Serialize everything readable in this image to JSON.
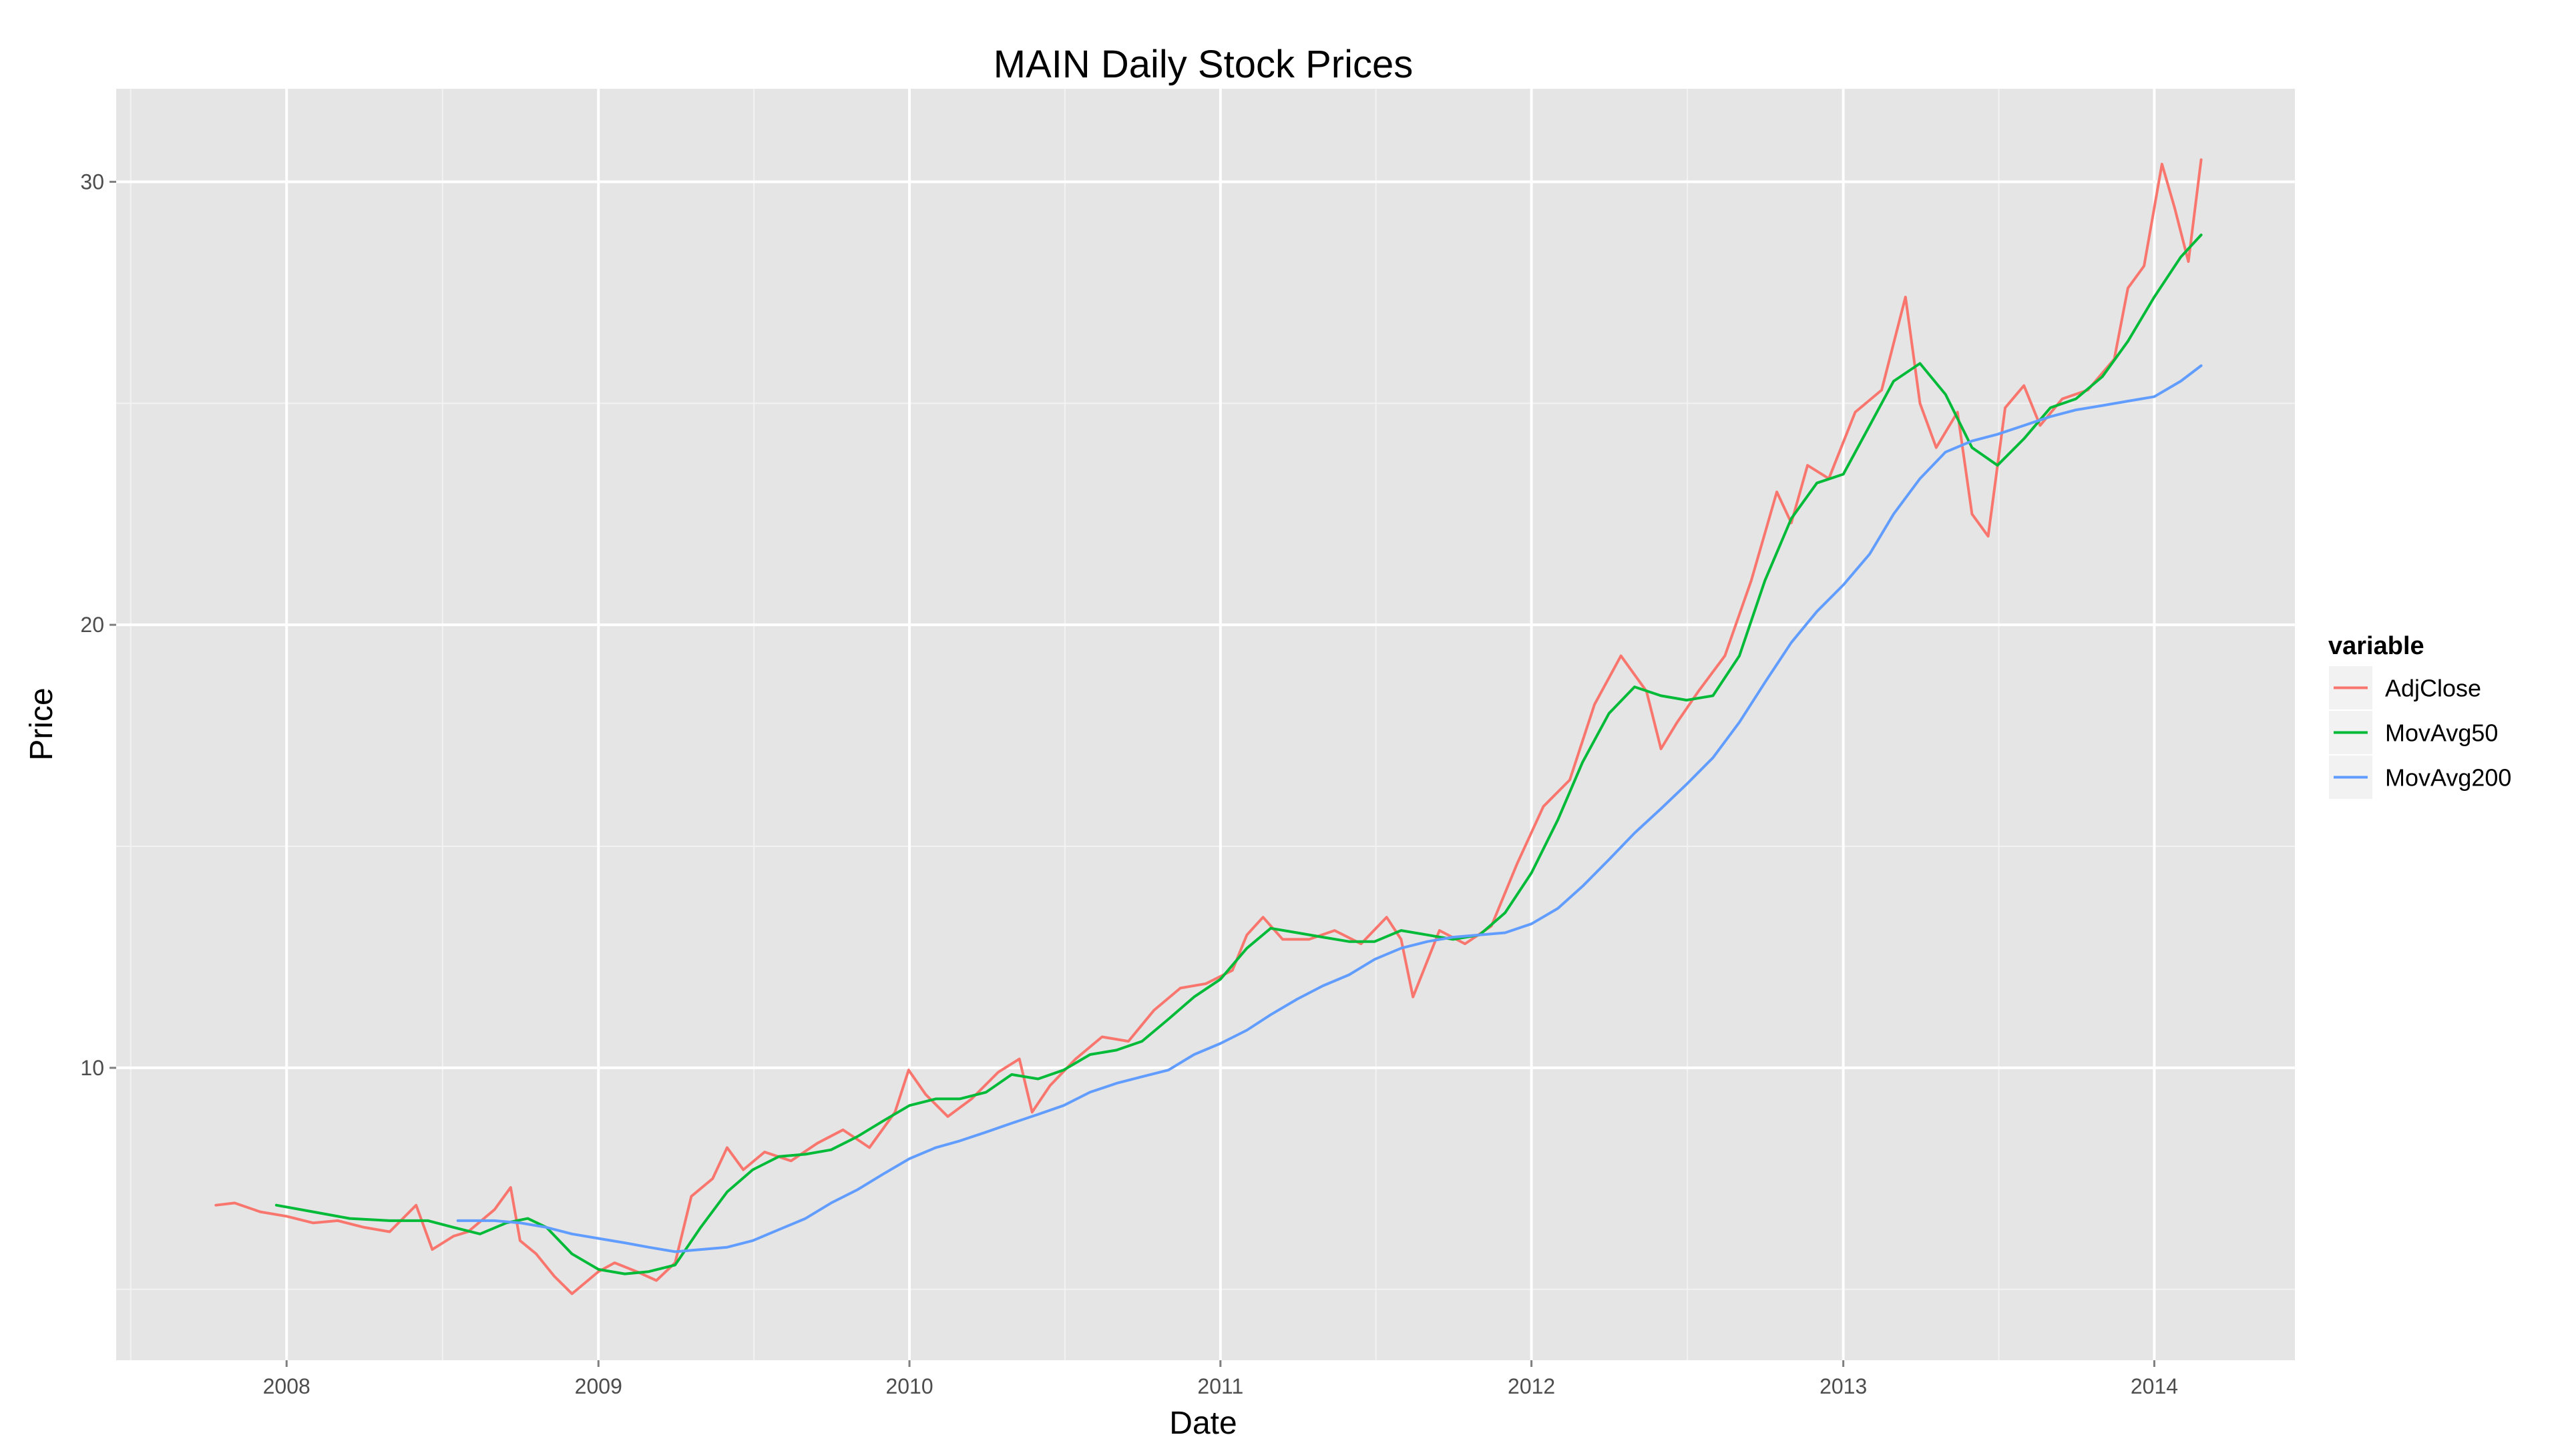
{
  "chart_data": {
    "type": "line",
    "title": "MAIN Daily Stock Prices",
    "xlabel": "Date",
    "ylabel": "Price",
    "x_type": "date",
    "xlim": [
      "2007-06-15",
      "2014-06-15"
    ],
    "ylim": [
      3.4,
      32.1
    ],
    "x_ticks": [
      {
        "value": "2008-01-01",
        "label": "2008"
      },
      {
        "value": "2009-01-01",
        "label": "2009"
      },
      {
        "value": "2010-01-01",
        "label": "2010"
      },
      {
        "value": "2011-01-01",
        "label": "2011"
      },
      {
        "value": "2012-01-01",
        "label": "2012"
      },
      {
        "value": "2013-01-01",
        "label": "2013"
      },
      {
        "value": "2014-01-01",
        "label": "2014"
      }
    ],
    "y_ticks": [
      {
        "value": 10,
        "label": "10"
      },
      {
        "value": 20,
        "label": "20"
      },
      {
        "value": 30,
        "label": "30"
      }
    ],
    "grid": true,
    "background": "#e5e5e5",
    "grid_color": "#ffffff",
    "legend": {
      "title": "variable",
      "position": "right"
    },
    "series": [
      {
        "name": "AdjClose",
        "color": "#f8766d",
        "points": [
          [
            "2007-10-10",
            6.9
          ],
          [
            "2007-11-01",
            6.95
          ],
          [
            "2007-12-01",
            6.75
          ],
          [
            "2008-01-01",
            6.65
          ],
          [
            "2008-02-01",
            6.5
          ],
          [
            "2008-03-01",
            6.55
          ],
          [
            "2008-04-01",
            6.4
          ],
          [
            "2008-05-01",
            6.3
          ],
          [
            "2008-06-01",
            6.9
          ],
          [
            "2008-06-20",
            5.9
          ],
          [
            "2008-07-15",
            6.2
          ],
          [
            "2008-08-01",
            6.3
          ],
          [
            "2008-09-01",
            6.8
          ],
          [
            "2008-09-20",
            7.3
          ],
          [
            "2008-10-01",
            6.1
          ],
          [
            "2008-10-20",
            5.8
          ],
          [
            "2008-11-10",
            5.3
          ],
          [
            "2008-12-01",
            4.9
          ],
          [
            "2009-01-01",
            5.4
          ],
          [
            "2009-01-20",
            5.6
          ],
          [
            "2009-02-15",
            5.4
          ],
          [
            "2009-03-10",
            5.2
          ],
          [
            "2009-04-01",
            5.6
          ],
          [
            "2009-04-20",
            7.1
          ],
          [
            "2009-05-15",
            7.5
          ],
          [
            "2009-06-01",
            8.2
          ],
          [
            "2009-06-20",
            7.7
          ],
          [
            "2009-07-15",
            8.1
          ],
          [
            "2009-08-15",
            7.9
          ],
          [
            "2009-09-15",
            8.3
          ],
          [
            "2009-10-15",
            8.6
          ],
          [
            "2009-11-15",
            8.2
          ],
          [
            "2009-12-15",
            9.0
          ],
          [
            "2009-12-31",
            9.95
          ],
          [
            "2010-01-20",
            9.4
          ],
          [
            "2010-02-15",
            8.9
          ],
          [
            "2010-03-15",
            9.3
          ],
          [
            "2010-04-15",
            9.9
          ],
          [
            "2010-05-10",
            10.2
          ],
          [
            "2010-05-25",
            9.0
          ],
          [
            "2010-06-15",
            9.6
          ],
          [
            "2010-07-15",
            10.2
          ],
          [
            "2010-08-15",
            10.7
          ],
          [
            "2010-09-15",
            10.6
          ],
          [
            "2010-10-15",
            11.3
          ],
          [
            "2010-11-15",
            11.8
          ],
          [
            "2010-12-15",
            11.9
          ],
          [
            "2011-01-15",
            12.2
          ],
          [
            "2011-02-01",
            13.0
          ],
          [
            "2011-02-20",
            13.4
          ],
          [
            "2011-03-15",
            12.9
          ],
          [
            "2011-04-15",
            12.9
          ],
          [
            "2011-05-15",
            13.1
          ],
          [
            "2011-06-15",
            12.8
          ],
          [
            "2011-07-15",
            13.4
          ],
          [
            "2011-08-01",
            12.9
          ],
          [
            "2011-08-15",
            11.6
          ],
          [
            "2011-09-15",
            13.1
          ],
          [
            "2011-10-15",
            12.8
          ],
          [
            "2011-11-15",
            13.2
          ],
          [
            "2011-12-15",
            14.6
          ],
          [
            "2012-01-15",
            15.9
          ],
          [
            "2012-02-15",
            16.5
          ],
          [
            "2012-03-15",
            18.2
          ],
          [
            "2012-04-15",
            19.3
          ],
          [
            "2012-05-15",
            18.5
          ],
          [
            "2012-06-01",
            17.2
          ],
          [
            "2012-06-20",
            17.8
          ],
          [
            "2012-07-15",
            18.5
          ],
          [
            "2012-08-15",
            19.3
          ],
          [
            "2012-09-15",
            21.0
          ],
          [
            "2012-10-15",
            23.0
          ],
          [
            "2012-11-01",
            22.3
          ],
          [
            "2012-11-20",
            23.6
          ],
          [
            "2012-12-15",
            23.3
          ],
          [
            "2013-01-15",
            24.8
          ],
          [
            "2013-02-15",
            25.3
          ],
          [
            "2013-03-15",
            27.4
          ],
          [
            "2013-04-01",
            25.0
          ],
          [
            "2013-04-20",
            24.0
          ],
          [
            "2013-05-15",
            24.8
          ],
          [
            "2013-06-01",
            22.5
          ],
          [
            "2013-06-20",
            22.0
          ],
          [
            "2013-07-10",
            24.9
          ],
          [
            "2013-08-01",
            25.4
          ],
          [
            "2013-08-20",
            24.5
          ],
          [
            "2013-09-15",
            25.1
          ],
          [
            "2013-10-15",
            25.3
          ],
          [
            "2013-11-15",
            26.0
          ],
          [
            "2013-12-01",
            27.6
          ],
          [
            "2013-12-20",
            28.1
          ],
          [
            "2014-01-10",
            30.4
          ],
          [
            "2014-01-25",
            29.4
          ],
          [
            "2014-02-10",
            28.2
          ],
          [
            "2014-02-25",
            30.5
          ]
        ]
      },
      {
        "name": "MovAvg50",
        "color": "#00ba38",
        "points": [
          [
            "2007-12-20",
            6.9
          ],
          [
            "2008-02-01",
            6.75
          ],
          [
            "2008-03-15",
            6.6
          ],
          [
            "2008-05-01",
            6.55
          ],
          [
            "2008-06-15",
            6.55
          ],
          [
            "2008-07-15",
            6.4
          ],
          [
            "2008-08-15",
            6.25
          ],
          [
            "2008-09-15",
            6.5
          ],
          [
            "2008-10-10",
            6.6
          ],
          [
            "2008-11-01",
            6.4
          ],
          [
            "2008-12-01",
            5.8
          ],
          [
            "2009-01-01",
            5.45
          ],
          [
            "2009-02-01",
            5.35
          ],
          [
            "2009-03-01",
            5.4
          ],
          [
            "2009-04-01",
            5.55
          ],
          [
            "2009-05-01",
            6.4
          ],
          [
            "2009-06-01",
            7.2
          ],
          [
            "2009-07-01",
            7.7
          ],
          [
            "2009-08-01",
            8.0
          ],
          [
            "2009-09-01",
            8.05
          ],
          [
            "2009-10-01",
            8.15
          ],
          [
            "2009-11-01",
            8.45
          ],
          [
            "2009-12-01",
            8.8
          ],
          [
            "2010-01-01",
            9.15
          ],
          [
            "2010-02-01",
            9.3
          ],
          [
            "2010-03-01",
            9.3
          ],
          [
            "2010-04-01",
            9.45
          ],
          [
            "2010-05-01",
            9.85
          ],
          [
            "2010-06-01",
            9.75
          ],
          [
            "2010-07-01",
            9.95
          ],
          [
            "2010-08-01",
            10.3
          ],
          [
            "2010-09-01",
            10.4
          ],
          [
            "2010-10-01",
            10.6
          ],
          [
            "2010-11-01",
            11.1
          ],
          [
            "2010-12-01",
            11.6
          ],
          [
            "2011-01-01",
            12.0
          ],
          [
            "2011-02-01",
            12.7
          ],
          [
            "2011-03-01",
            13.15
          ],
          [
            "2011-04-01",
            13.05
          ],
          [
            "2011-05-01",
            12.95
          ],
          [
            "2011-06-01",
            12.85
          ],
          [
            "2011-07-01",
            12.85
          ],
          [
            "2011-08-01",
            13.1
          ],
          [
            "2011-09-01",
            13.0
          ],
          [
            "2011-10-01",
            12.9
          ],
          [
            "2011-11-01",
            13.0
          ],
          [
            "2011-12-01",
            13.5
          ],
          [
            "2012-01-01",
            14.4
          ],
          [
            "2012-02-01",
            15.6
          ],
          [
            "2012-03-01",
            16.9
          ],
          [
            "2012-04-01",
            18.0
          ],
          [
            "2012-05-01",
            18.6
          ],
          [
            "2012-06-01",
            18.4
          ],
          [
            "2012-07-01",
            18.3
          ],
          [
            "2012-08-01",
            18.4
          ],
          [
            "2012-09-01",
            19.3
          ],
          [
            "2012-10-01",
            21.0
          ],
          [
            "2012-11-01",
            22.4
          ],
          [
            "2012-12-01",
            23.2
          ],
          [
            "2013-01-01",
            23.4
          ],
          [
            "2013-02-01",
            24.5
          ],
          [
            "2013-03-01",
            25.5
          ],
          [
            "2013-04-01",
            25.9
          ],
          [
            "2013-05-01",
            25.2
          ],
          [
            "2013-06-01",
            24.0
          ],
          [
            "2013-07-01",
            23.6
          ],
          [
            "2013-08-01",
            24.2
          ],
          [
            "2013-09-01",
            24.9
          ],
          [
            "2013-10-01",
            25.1
          ],
          [
            "2013-11-01",
            25.6
          ],
          [
            "2013-12-01",
            26.4
          ],
          [
            "2014-01-01",
            27.4
          ],
          [
            "2014-02-01",
            28.3
          ],
          [
            "2014-02-25",
            28.8
          ]
        ]
      },
      {
        "name": "MovAvg200",
        "color": "#619cff",
        "points": [
          [
            "2008-07-20",
            6.55
          ],
          [
            "2008-09-01",
            6.55
          ],
          [
            "2008-10-01",
            6.5
          ],
          [
            "2008-11-01",
            6.4
          ],
          [
            "2008-12-01",
            6.25
          ],
          [
            "2009-01-01",
            6.15
          ],
          [
            "2009-02-01",
            6.05
          ],
          [
            "2009-03-01",
            5.95
          ],
          [
            "2009-04-01",
            5.85
          ],
          [
            "2009-05-01",
            5.9
          ],
          [
            "2009-06-01",
            5.95
          ],
          [
            "2009-07-01",
            6.1
          ],
          [
            "2009-08-01",
            6.35
          ],
          [
            "2009-09-01",
            6.6
          ],
          [
            "2009-10-01",
            6.95
          ],
          [
            "2009-11-01",
            7.25
          ],
          [
            "2009-12-01",
            7.6
          ],
          [
            "2010-01-01",
            7.95
          ],
          [
            "2010-02-01",
            8.2
          ],
          [
            "2010-03-01",
            8.35
          ],
          [
            "2010-04-01",
            8.55
          ],
          [
            "2010-05-01",
            8.75
          ],
          [
            "2010-06-01",
            8.95
          ],
          [
            "2010-07-01",
            9.15
          ],
          [
            "2010-08-01",
            9.45
          ],
          [
            "2010-09-01",
            9.65
          ],
          [
            "2010-10-01",
            9.8
          ],
          [
            "2010-11-01",
            9.95
          ],
          [
            "2010-12-01",
            10.3
          ],
          [
            "2011-01-01",
            10.55
          ],
          [
            "2011-02-01",
            10.85
          ],
          [
            "2011-03-01",
            11.2
          ],
          [
            "2011-04-01",
            11.55
          ],
          [
            "2011-05-01",
            11.85
          ],
          [
            "2011-06-01",
            12.1
          ],
          [
            "2011-07-01",
            12.45
          ],
          [
            "2011-08-01",
            12.7
          ],
          [
            "2011-09-01",
            12.85
          ],
          [
            "2011-10-01",
            12.95
          ],
          [
            "2011-11-01",
            13.0
          ],
          [
            "2011-12-01",
            13.05
          ],
          [
            "2012-01-01",
            13.25
          ],
          [
            "2012-02-01",
            13.6
          ],
          [
            "2012-03-01",
            14.1
          ],
          [
            "2012-04-01",
            14.7
          ],
          [
            "2012-05-01",
            15.3
          ],
          [
            "2012-06-01",
            15.85
          ],
          [
            "2012-07-01",
            16.4
          ],
          [
            "2012-08-01",
            17.0
          ],
          [
            "2012-09-01",
            17.8
          ],
          [
            "2012-10-01",
            18.7
          ],
          [
            "2012-11-01",
            19.6
          ],
          [
            "2012-12-01",
            20.3
          ],
          [
            "2013-01-01",
            20.9
          ],
          [
            "2013-02-01",
            21.6
          ],
          [
            "2013-03-01",
            22.5
          ],
          [
            "2013-04-01",
            23.3
          ],
          [
            "2013-05-01",
            23.9
          ],
          [
            "2013-06-01",
            24.15
          ],
          [
            "2013-07-01",
            24.3
          ],
          [
            "2013-08-01",
            24.5
          ],
          [
            "2013-09-01",
            24.7
          ],
          [
            "2013-10-01",
            24.85
          ],
          [
            "2013-11-01",
            24.95
          ],
          [
            "2013-12-01",
            25.05
          ],
          [
            "2014-01-01",
            25.15
          ],
          [
            "2014-02-01",
            25.5
          ],
          [
            "2014-02-25",
            25.85
          ]
        ]
      }
    ]
  }
}
